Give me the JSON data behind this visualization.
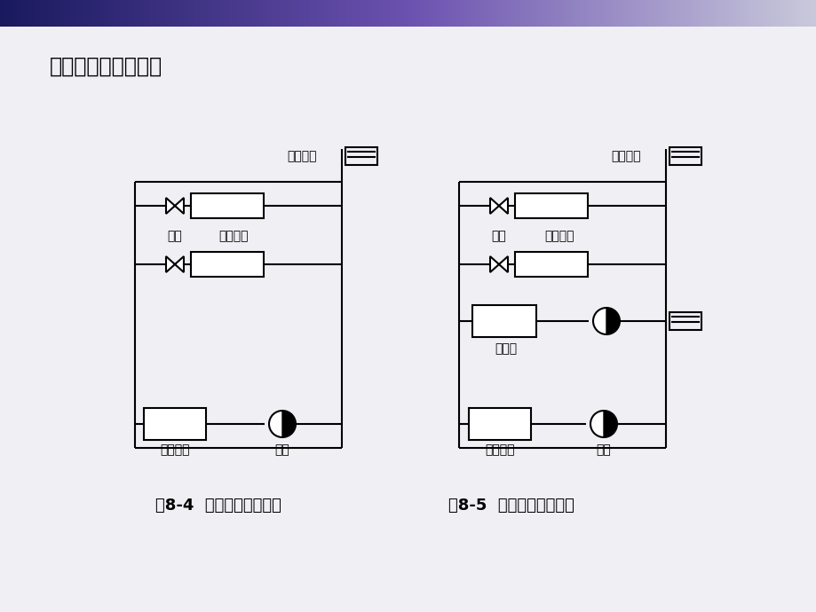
{
  "title": "直连系统与间连系统",
  "caption_left": "图8-4  直连式冷冻水系统",
  "caption_right": "图8-5  间连式冷冻水系统",
  "bg_color": "#f0eff4",
  "title_fontsize": 17,
  "caption_fontsize": 13,
  "lw": 1.5
}
